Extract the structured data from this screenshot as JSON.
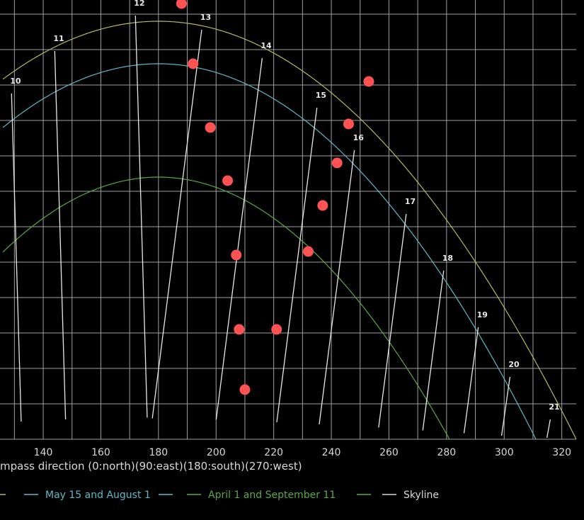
{
  "chart_data": {
    "type": "line",
    "xlabel": "mpass direction (0:north)(90:east)(180:south)(270:west)",
    "x_ticks": [
      140,
      160,
      180,
      200,
      220,
      240,
      260,
      280,
      300,
      320
    ],
    "xlim": [
      125,
      325
    ],
    "ylim": [
      0,
      62
    ],
    "grid": true,
    "series": [
      {
        "name": "",
        "color": "#b8b860",
        "peak_elevation": 59,
        "x_range": [
          126,
          325
        ]
      },
      {
        "name": "May 15 and August 1",
        "color": "#5fb8c8",
        "peak_elevation": 53,
        "x_range": [
          126,
          311
        ]
      },
      {
        "name": "April 1 and September 11",
        "color": "#5aa844",
        "peak_elevation": 37,
        "x_range": [
          126,
          281
        ]
      }
    ],
    "hour_labels": [
      {
        "label": "10",
        "x": 129,
        "y": 50
      },
      {
        "label": "11",
        "x": 144,
        "y": 56
      },
      {
        "label": "12",
        "x": 172,
        "y": 61
      },
      {
        "label": "13",
        "x": 195,
        "y": 59
      },
      {
        "label": "14",
        "x": 216,
        "y": 55
      },
      {
        "label": "15",
        "x": 235,
        "y": 48
      },
      {
        "label": "16",
        "x": 248,
        "y": 42
      },
      {
        "label": "17",
        "x": 266,
        "y": 33
      },
      {
        "label": "18",
        "x": 279,
        "y": 25
      },
      {
        "label": "19",
        "x": 291,
        "y": 17
      },
      {
        "label": "20",
        "x": 302,
        "y": 10
      },
      {
        "label": "21",
        "x": 316,
        "y": 4
      }
    ],
    "skyline_name": "Skyline",
    "skyline_points": [
      {
        "x": 188,
        "y": 61.5
      },
      {
        "x": 192,
        "y": 53
      },
      {
        "x": 198,
        "y": 44
      },
      {
        "x": 204,
        "y": 36.5
      },
      {
        "x": 207,
        "y": 26
      },
      {
        "x": 208,
        "y": 15.5
      },
      {
        "x": 210,
        "y": 7
      },
      {
        "x": 221,
        "y": 15.5
      },
      {
        "x": 232,
        "y": 26.5
      },
      {
        "x": 237,
        "y": 33
      },
      {
        "x": 242,
        "y": 39
      },
      {
        "x": 246,
        "y": 44.5
      },
      {
        "x": 253,
        "y": 50.5
      }
    ],
    "point_color": "#ff5252"
  }
}
